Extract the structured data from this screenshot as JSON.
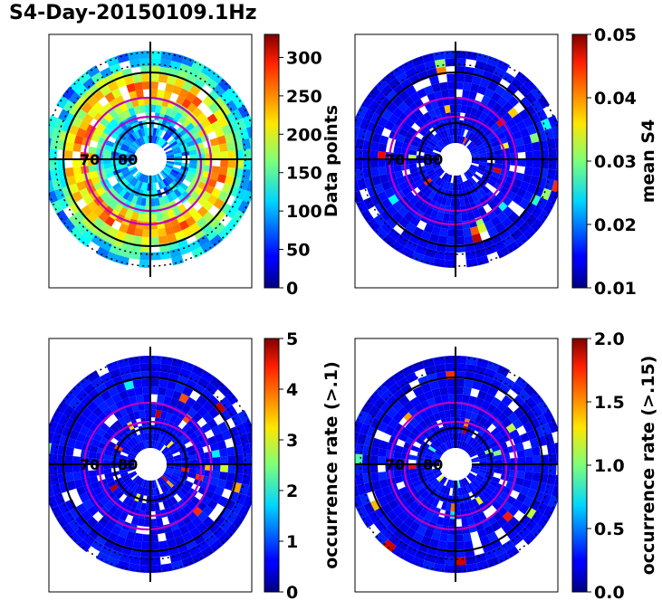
{
  "title": "S4-Day-20150109.1Hz",
  "chart_data": [
    {
      "type": "heatmap",
      "projection": "polar",
      "colormap": "jet",
      "colorbar": {
        "label": "Data points",
        "range": [
          0,
          330
        ],
        "ticks": [
          "0",
          "50",
          "100",
          "150",
          "200",
          "250",
          "300"
        ],
        "tick_values": [
          0,
          50,
          100,
          150,
          200,
          250,
          300
        ]
      },
      "ring_labels": [
        "70",
        "80"
      ]
    },
    {
      "type": "heatmap",
      "projection": "polar",
      "colormap": "jet",
      "colorbar": {
        "label": "mean S4",
        "range": [
          0.01,
          0.05
        ],
        "ticks": [
          "0.01",
          "0.02",
          "0.03",
          "0.04",
          "0.05"
        ],
        "tick_values": [
          0.01,
          0.02,
          0.03,
          0.04,
          0.05
        ]
      },
      "ring_labels": [
        "70",
        "80"
      ]
    },
    {
      "type": "heatmap",
      "projection": "polar",
      "colormap": "jet",
      "colorbar": {
        "label": "occurrence rate (>.1)",
        "range": [
          0,
          5
        ],
        "ticks": [
          "0",
          "1",
          "2",
          "3",
          "4",
          "5"
        ],
        "tick_values": [
          0,
          1,
          2,
          3,
          4,
          5
        ]
      },
      "ring_labels": [
        "70",
        "80"
      ]
    },
    {
      "type": "heatmap",
      "projection": "polar",
      "colormap": "jet",
      "colorbar": {
        "label": "occurrence rate (>.15)",
        "range": [
          0,
          2
        ],
        "ticks": [
          "0.0",
          "0.5",
          "1.0",
          "1.5",
          "2.0"
        ],
        "tick_values": [
          0,
          0.5,
          1.0,
          1.5,
          2.0
        ]
      },
      "ring_labels": [
        "70",
        "80"
      ]
    }
  ]
}
